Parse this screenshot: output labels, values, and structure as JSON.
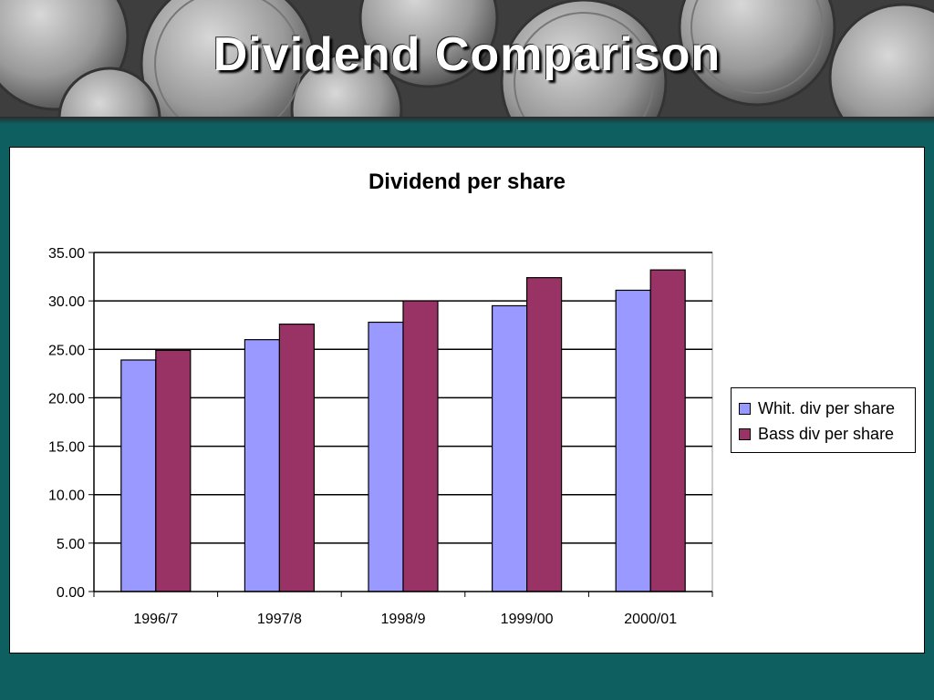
{
  "slide": {
    "title": "Dividend Comparison"
  },
  "colors": {
    "background": "#0e5f5f",
    "series_whit": "#9999ff",
    "series_bass": "#993366"
  },
  "chart_data": {
    "type": "bar",
    "title": "Dividend per share",
    "xlabel": "",
    "ylabel": "",
    "categories": [
      "1996/7",
      "1997/8",
      "1998/9",
      "1999/00",
      "2000/01"
    ],
    "series": [
      {
        "name": "Whit. div per share",
        "color": "#9999ff",
        "values": [
          23.9,
          26.0,
          27.8,
          29.5,
          31.1
        ]
      },
      {
        "name": "Bass div per share",
        "color": "#993366",
        "values": [
          24.9,
          27.6,
          30.0,
          32.4,
          33.2
        ]
      }
    ],
    "ylim": [
      0,
      35
    ],
    "ytick_step": 5,
    "ytick_labels": [
      "0.00",
      "5.00",
      "10.00",
      "15.00",
      "20.00",
      "25.00",
      "30.00",
      "35.00"
    ],
    "grid": true,
    "legend_position": "right"
  }
}
